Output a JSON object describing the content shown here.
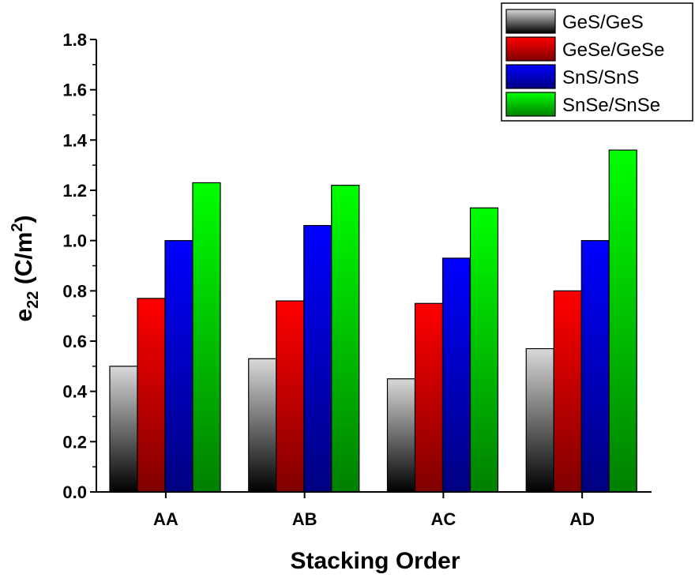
{
  "chart_data": {
    "type": "bar",
    "categories": [
      "AA",
      "AB",
      "AC",
      "AD"
    ],
    "series": [
      {
        "name": "GeS/GeS",
        "values": [
          0.5,
          0.53,
          0.45,
          0.57
        ],
        "color_top": "#d9d9d9",
        "color_bottom": "#000000"
      },
      {
        "name": "GeSe/GeSe",
        "values": [
          0.77,
          0.76,
          0.75,
          0.8
        ],
        "color_top": "#ff0000",
        "color_bottom": "#800000"
      },
      {
        "name": "SnS/SnS",
        "values": [
          1.0,
          1.06,
          0.93,
          1.0
        ],
        "color_top": "#0000ff",
        "color_bottom": "#000080"
      },
      {
        "name": "SnSe/SnSe",
        "values": [
          1.23,
          1.22,
          1.13,
          1.36
        ],
        "color_top": "#00ff00",
        "color_bottom": "#008000"
      }
    ],
    "title": "",
    "xlabel": "Stacking Order",
    "ylabel": {
      "base": "e",
      "sub": "22",
      "unit_open": " (C/m",
      "sup": "2",
      "unit_close": ")"
    },
    "ylim": [
      0,
      1.8
    ],
    "yticks": [
      "0.0",
      "0.2",
      "0.4",
      "0.6",
      "0.8",
      "1.0",
      "1.2",
      "1.4",
      "1.6",
      "1.8"
    ],
    "grid": false,
    "legend_position": "top-right"
  }
}
